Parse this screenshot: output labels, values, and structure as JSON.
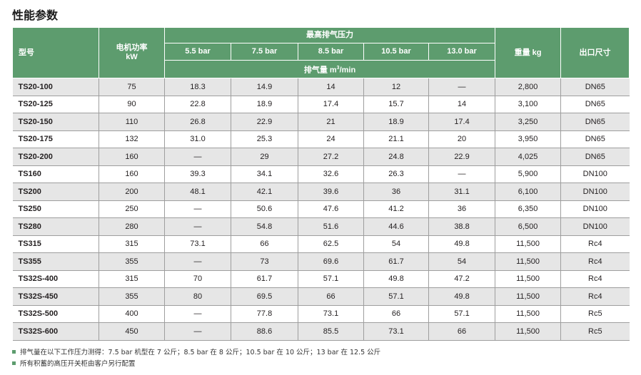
{
  "title": "性能参数",
  "header": {
    "model": "型号",
    "power": "电机功率",
    "power_unit": "kW",
    "max_pressure": "最高排气压力",
    "pressures": [
      "5.5 bar",
      "7.5 bar",
      "8.5 bar",
      "10.5 bar",
      "13.0 bar"
    ],
    "flow_label": "排气量 m",
    "flow_exp": "3",
    "flow_suffix": "/min",
    "weight": "重量 kg",
    "outlet": "出口尺寸"
  },
  "rows": [
    {
      "model": "TS20-100",
      "power": "75",
      "f": [
        "18.3",
        "14.9",
        "14",
        "12",
        "—"
      ],
      "weight": "2,800",
      "outlet": "DN65"
    },
    {
      "model": "TS20-125",
      "power": "90",
      "f": [
        "22.8",
        "18.9",
        "17.4",
        "15.7",
        "14"
      ],
      "weight": "3,100",
      "outlet": "DN65"
    },
    {
      "model": "TS20-150",
      "power": "110",
      "f": [
        "26.8",
        "22.9",
        "21",
        "18.9",
        "17.4"
      ],
      "weight": "3,250",
      "outlet": "DN65"
    },
    {
      "model": "TS20-175",
      "power": "132",
      "f": [
        "31.0",
        "25.3",
        "24",
        "21.1",
        "20"
      ],
      "weight": "3,950",
      "outlet": "DN65"
    },
    {
      "model": "TS20-200",
      "power": "160",
      "f": [
        "—",
        "29",
        "27.2",
        "24.8",
        "22.9"
      ],
      "weight": "4,025",
      "outlet": "DN65"
    },
    {
      "model": "TS160",
      "power": "160",
      "f": [
        "39.3",
        "34.1",
        "32.6",
        "26.3",
        "—"
      ],
      "weight": "5,900",
      "outlet": "DN100"
    },
    {
      "model": "TS200",
      "power": "200",
      "f": [
        "48.1",
        "42.1",
        "39.6",
        "36",
        "31.1"
      ],
      "weight": "6,100",
      "outlet": "DN100"
    },
    {
      "model": "TS250",
      "power": "250",
      "f": [
        "—",
        "50.6",
        "47.6",
        "41.2",
        "36"
      ],
      "weight": "6,350",
      "outlet": "DN100"
    },
    {
      "model": "TS280",
      "power": "280",
      "f": [
        "—",
        "54.8",
        "51.6",
        "44.6",
        "38.8"
      ],
      "weight": "6,500",
      "outlet": "DN100"
    },
    {
      "model": "TS315",
      "power": "315",
      "f": [
        "73.1",
        "66",
        "62.5",
        "54",
        "49.8"
      ],
      "weight": "11,500",
      "outlet": "Rc4"
    },
    {
      "model": "TS355",
      "power": "355",
      "f": [
        "—",
        "73",
        "69.6",
        "61.7",
        "54"
      ],
      "weight": "11,500",
      "outlet": "Rc4"
    },
    {
      "model": "TS32S-400",
      "power": "315",
      "f": [
        "70",
        "61.7",
        "57.1",
        "49.8",
        "47.2"
      ],
      "weight": "11,500",
      "outlet": "Rc4"
    },
    {
      "model": "TS32S-450",
      "power": "355",
      "f": [
        "80",
        "69.5",
        "66",
        "57.1",
        "49.8"
      ],
      "weight": "11,500",
      "outlet": "Rc4"
    },
    {
      "model": "TS32S-500",
      "power": "400",
      "f": [
        "—",
        "77.8",
        "73.1",
        "66",
        "57.1"
      ],
      "weight": "11,500",
      "outlet": "Rc5"
    },
    {
      "model": "TS32S-600",
      "power": "450",
      "f": [
        "—",
        "88.6",
        "85.5",
        "73.1",
        "66"
      ],
      "weight": "11,500",
      "outlet": "Rc5"
    }
  ],
  "notes": [
    "排气量在以下工作压力测得：7.5 bar 机型在 7 公斤；8.5 bar 在 8 公斤；10.5 bar 在 10 公斤；13 bar 在 12.5 公斤",
    "所有积蓄的高压开关柜由客户另行配置"
  ]
}
